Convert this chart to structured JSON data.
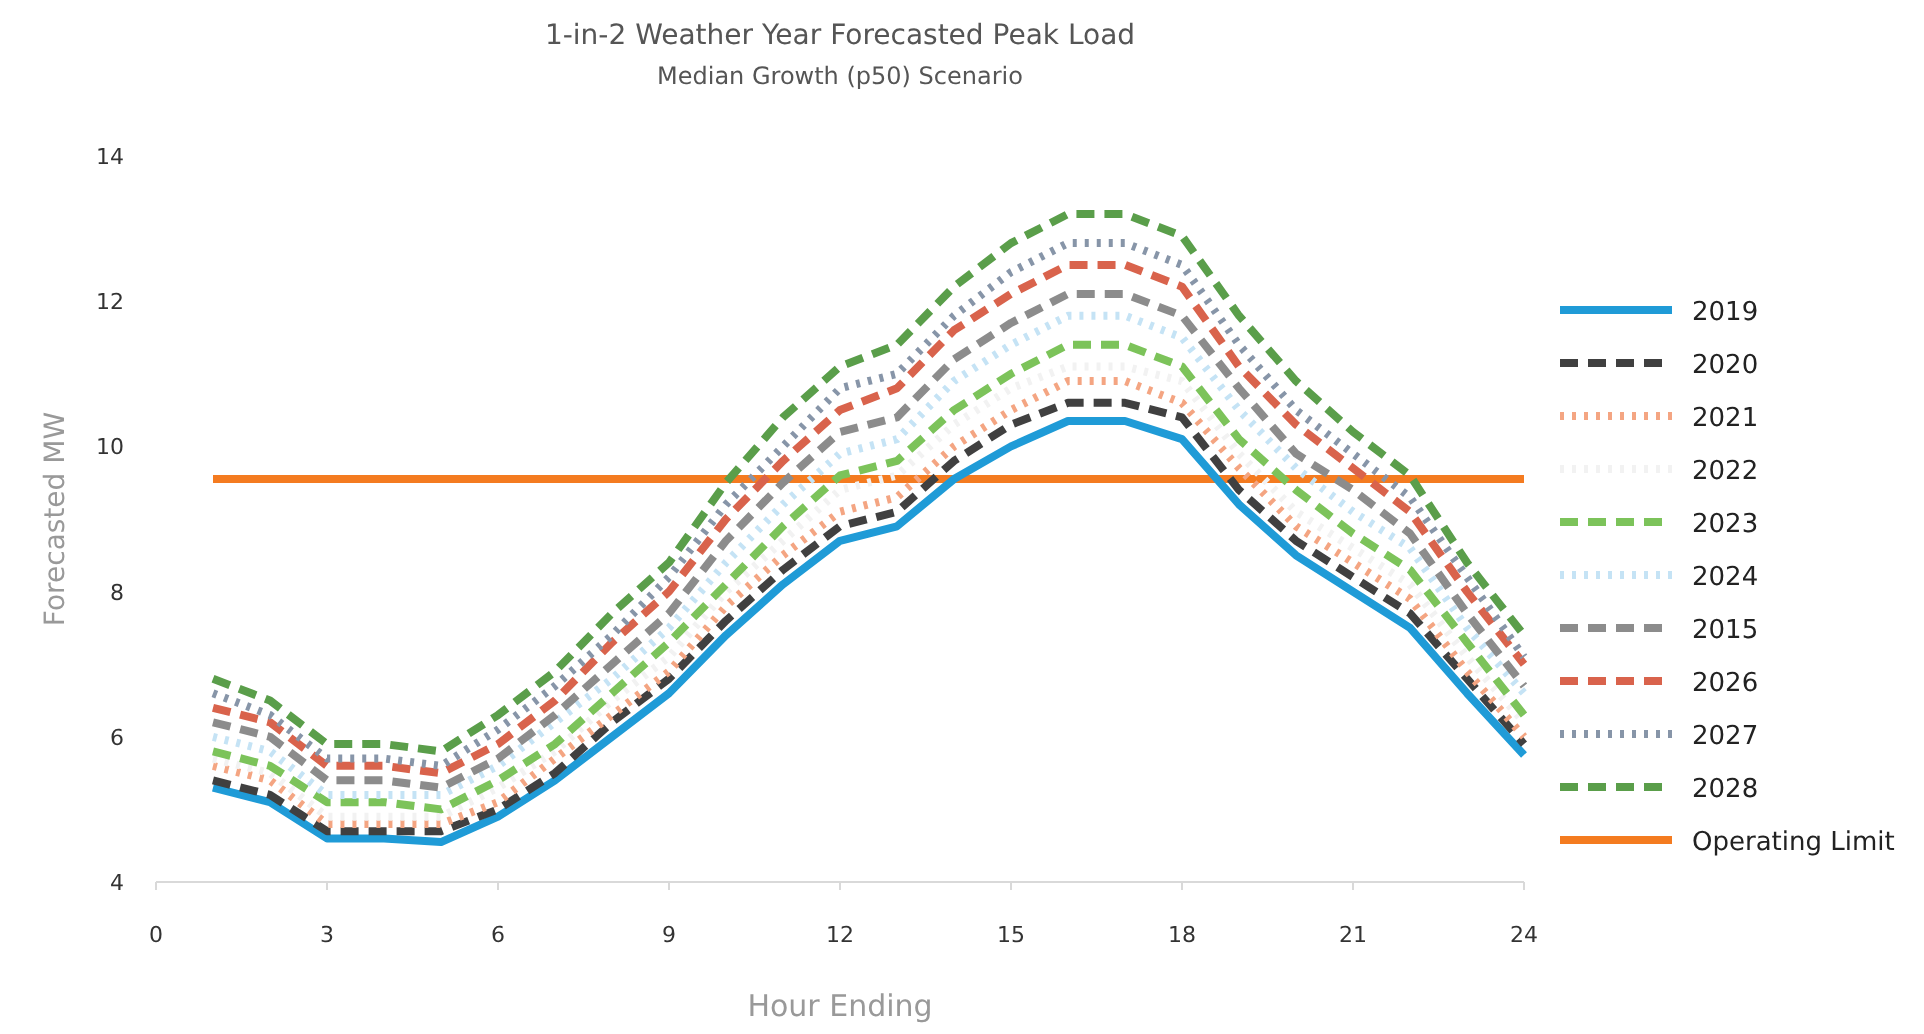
{
  "chart_data": {
    "type": "line",
    "title": "1-in-2 Weather Year Forecasted Peak Load",
    "subtitle": "Median Growth (p50) Scenario",
    "xlabel": "Hour Ending",
    "ylabel": "Forecasted MW",
    "x": [
      1,
      2,
      3,
      4,
      5,
      6,
      7,
      8,
      9,
      10,
      11,
      12,
      13,
      14,
      15,
      16,
      17,
      18,
      19,
      20,
      21,
      22,
      23,
      24
    ],
    "xlim": [
      0,
      24
    ],
    "xticks": [
      0,
      3,
      6,
      9,
      12,
      15,
      18,
      21,
      24
    ],
    "ylim": [
      4,
      14
    ],
    "yticks": [
      4,
      6,
      8,
      10,
      12,
      14
    ],
    "grid": false,
    "legend": "right",
    "marker": "none",
    "series": [
      {
        "name": "2019",
        "color": "#1f9bd7",
        "line_style": "solid",
        "values": [
          5.3,
          5.1,
          4.6,
          4.6,
          4.55,
          4.9,
          5.4,
          6.0,
          6.6,
          7.4,
          8.1,
          8.7,
          8.9,
          9.55,
          10.0,
          10.35,
          10.35,
          10.1,
          9.2,
          8.5,
          8.0,
          7.5,
          6.6,
          5.75
        ]
      },
      {
        "name": "2020",
        "color": "#404040",
        "line_style": "dashed",
        "values": [
          5.4,
          5.2,
          4.7,
          4.7,
          4.7,
          5.0,
          5.5,
          6.2,
          6.8,
          7.6,
          8.3,
          8.9,
          9.1,
          9.8,
          10.3,
          10.6,
          10.6,
          10.4,
          9.4,
          8.7,
          8.2,
          7.7,
          6.8,
          5.9
        ]
      },
      {
        "name": "2021",
        "color": "#f4a582",
        "line_style": "dotted",
        "values": [
          5.6,
          5.4,
          4.8,
          4.8,
          4.8,
          5.1,
          5.7,
          6.3,
          6.9,
          7.8,
          8.5,
          9.1,
          9.3,
          10.0,
          10.5,
          10.9,
          10.9,
          10.6,
          9.7,
          8.9,
          8.4,
          7.9,
          6.9,
          6.0
        ]
      },
      {
        "name": "2022",
        "color": "#f2f2f2",
        "line_style": "dotted",
        "values": [
          5.7,
          5.5,
          4.9,
          4.9,
          4.9,
          5.3,
          5.8,
          6.5,
          7.1,
          8.0,
          8.7,
          9.4,
          9.6,
          10.3,
          10.8,
          11.1,
          11.1,
          10.9,
          9.9,
          9.1,
          8.6,
          8.1,
          7.1,
          6.2
        ]
      },
      {
        "name": "2023",
        "color": "#7cc35a",
        "line_style": "dashed",
        "values": [
          5.8,
          5.6,
          5.1,
          5.1,
          5.0,
          5.4,
          5.9,
          6.6,
          7.3,
          8.1,
          8.9,
          9.6,
          9.8,
          10.5,
          11.0,
          11.4,
          11.4,
          11.1,
          10.1,
          9.4,
          8.8,
          8.3,
          7.3,
          6.3
        ]
      },
      {
        "name": "2024",
        "color": "#c5e3f5",
        "line_style": "dotted",
        "values": [
          6.0,
          5.8,
          5.2,
          5.2,
          5.2,
          5.6,
          6.2,
          6.8,
          7.5,
          8.4,
          9.2,
          9.9,
          10.1,
          10.9,
          11.4,
          11.8,
          11.8,
          11.5,
          10.5,
          9.7,
          9.1,
          8.6,
          7.5,
          6.6
        ]
      },
      {
        "name": "2015",
        "color": "#8c8c8c",
        "line_style": "dashed",
        "values": [
          6.2,
          6.0,
          5.4,
          5.4,
          5.3,
          5.7,
          6.3,
          7.0,
          7.7,
          8.7,
          9.5,
          10.2,
          10.4,
          11.2,
          11.7,
          12.1,
          12.1,
          11.8,
          10.8,
          9.9,
          9.4,
          8.8,
          7.7,
          6.7
        ]
      },
      {
        "name": "2026",
        "color": "#d9634c",
        "line_style": "dashed",
        "values": [
          6.4,
          6.2,
          5.6,
          5.6,
          5.5,
          5.9,
          6.5,
          7.3,
          8.0,
          9.0,
          9.8,
          10.5,
          10.8,
          11.6,
          12.1,
          12.5,
          12.5,
          12.2,
          11.1,
          10.3,
          9.7,
          9.1,
          8.0,
          7.0
        ]
      },
      {
        "name": "2027",
        "color": "#8795a8",
        "line_style": "dotted",
        "values": [
          6.6,
          6.3,
          5.7,
          5.7,
          5.6,
          6.1,
          6.7,
          7.4,
          8.2,
          9.2,
          10.0,
          10.8,
          11.0,
          11.8,
          12.4,
          12.8,
          12.8,
          12.5,
          11.4,
          10.5,
          9.9,
          9.3,
          8.2,
          7.1
        ]
      },
      {
        "name": "2028",
        "color": "#5a9e4a",
        "line_style": "dashed",
        "values": [
          6.8,
          6.5,
          5.9,
          5.9,
          5.8,
          6.3,
          6.9,
          7.7,
          8.4,
          9.5,
          10.4,
          11.1,
          11.4,
          12.2,
          12.8,
          13.2,
          13.2,
          12.9,
          11.8,
          10.9,
          10.2,
          9.6,
          8.4,
          7.4
        ]
      }
    ],
    "ref_lines": [
      {
        "axis": "y",
        "value": 9.55,
        "label": "Operating Limit",
        "color": "#f47b20",
        "line_style": "solid"
      }
    ]
  }
}
